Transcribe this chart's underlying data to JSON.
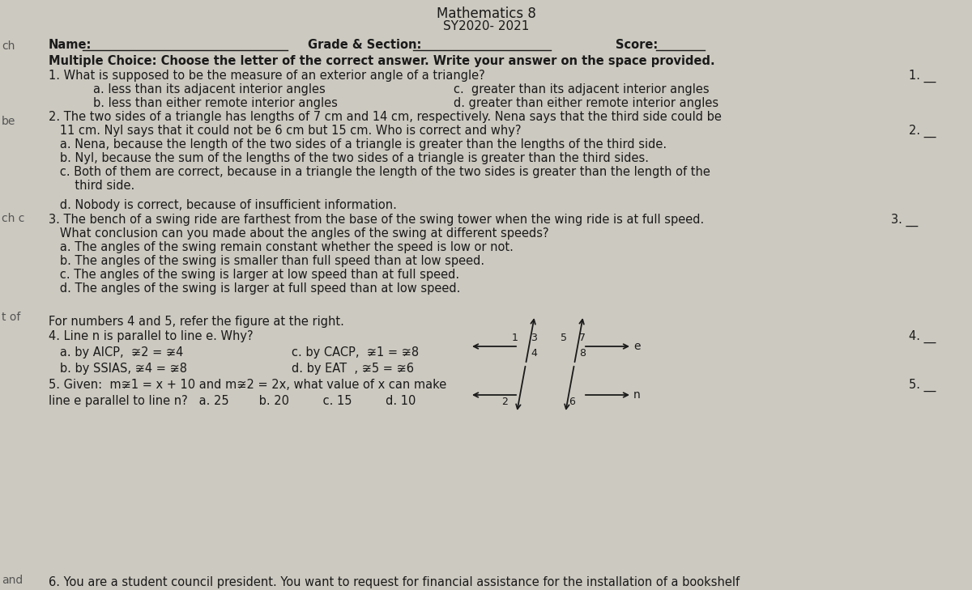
{
  "title_line1": "Mathematics 8",
  "title_line2": "SY2020- 2021",
  "bg_color": "#ccc9c0",
  "text_color": "#1a1a1a",
  "name_label": "Name:",
  "grade_label": "Grade & Section:",
  "score_label": "Score:",
  "mc_header": "Multiple Choice: Choose the letter of the correct answer. Write your answer on the space provided.",
  "q1": "1. What is supposed to be the measure of an exterior angle of a triangle?",
  "q1_num": "1. __",
  "q1a": "a. less than its adjacent interior angles",
  "q1b": "b. less than either remote interior angles",
  "q1c": "c.  greater than its adjacent interior angles",
  "q1d": "d. greater than either remote interior angles",
  "q2_line1": "2. The two sides of a triangle has lengths of 7 cm and 14 cm, respectively. Nena says that the third side could be",
  "q2_line2": "   11 cm. Nyl says that it could not be 6 cm but 15 cm. Who is correct and why?",
  "q2_num": "2. __",
  "q2a": "   a. Nena, because the length of the two sides of a triangle is greater than the lengths of the third side.",
  "q2b": "   b. Nyl, because the sum of the lengths of the two sides of a triangle is greater than the third sides.",
  "q2c_line1": "   c. Both of them are correct, because in a triangle the length of the two sides is greater than the length of the",
  "q2c_line2": "       third side.",
  "q2d": "   d. Nobody is correct, because of insufficient information.",
  "q3_line1": "3. The bench of a swing ride are farthest from the base of the swing tower when the wing ride is at full speed.",
  "q3_num": "3. __",
  "q3_line2": "   What conclusion can you made about the angles of the swing at different speeds?",
  "q3a": "   a. The angles of the swing remain constant whether the speed is low or not.",
  "q3b": "   b. The angles of the swing is smaller than full speed than at low speed.",
  "q3c": "   c. The angles of the swing is larger at low speed than at full speed.",
  "q3d": "   d. The angles of the swing is larger at full speed than at low speed.",
  "q45_intro": "For numbers 4 and 5, refer the figure at the right.",
  "q4": "4. Line n is parallel to line e. Why?",
  "q4_num": "4. __",
  "q4a": "   a. by AICP,  ≆2 = ≆4",
  "q4b": "   b. by SSIAS, ≆4 = ≆8",
  "q4c": "c. by CACP,  ≆1 = ≆8",
  "q4d": "d. by EAT  , ≆5 = ≆6",
  "q5_line1": "5. Given:  m≆1 = x + 10 and m≆2 = 2x, what value of x can make",
  "q5_num": "5. __",
  "q5_line2": "line e parallel to line n?   a. 25        b. 20         c. 15         d. 10",
  "q6_partial": "6. You are a student council president. You want to request for financial assistance for the installation of a bookshelf",
  "left_text1": "ch",
  "left_text2": "be",
  "left_text3": "ch c",
  "left_text4": "t of",
  "left_text5": "and"
}
